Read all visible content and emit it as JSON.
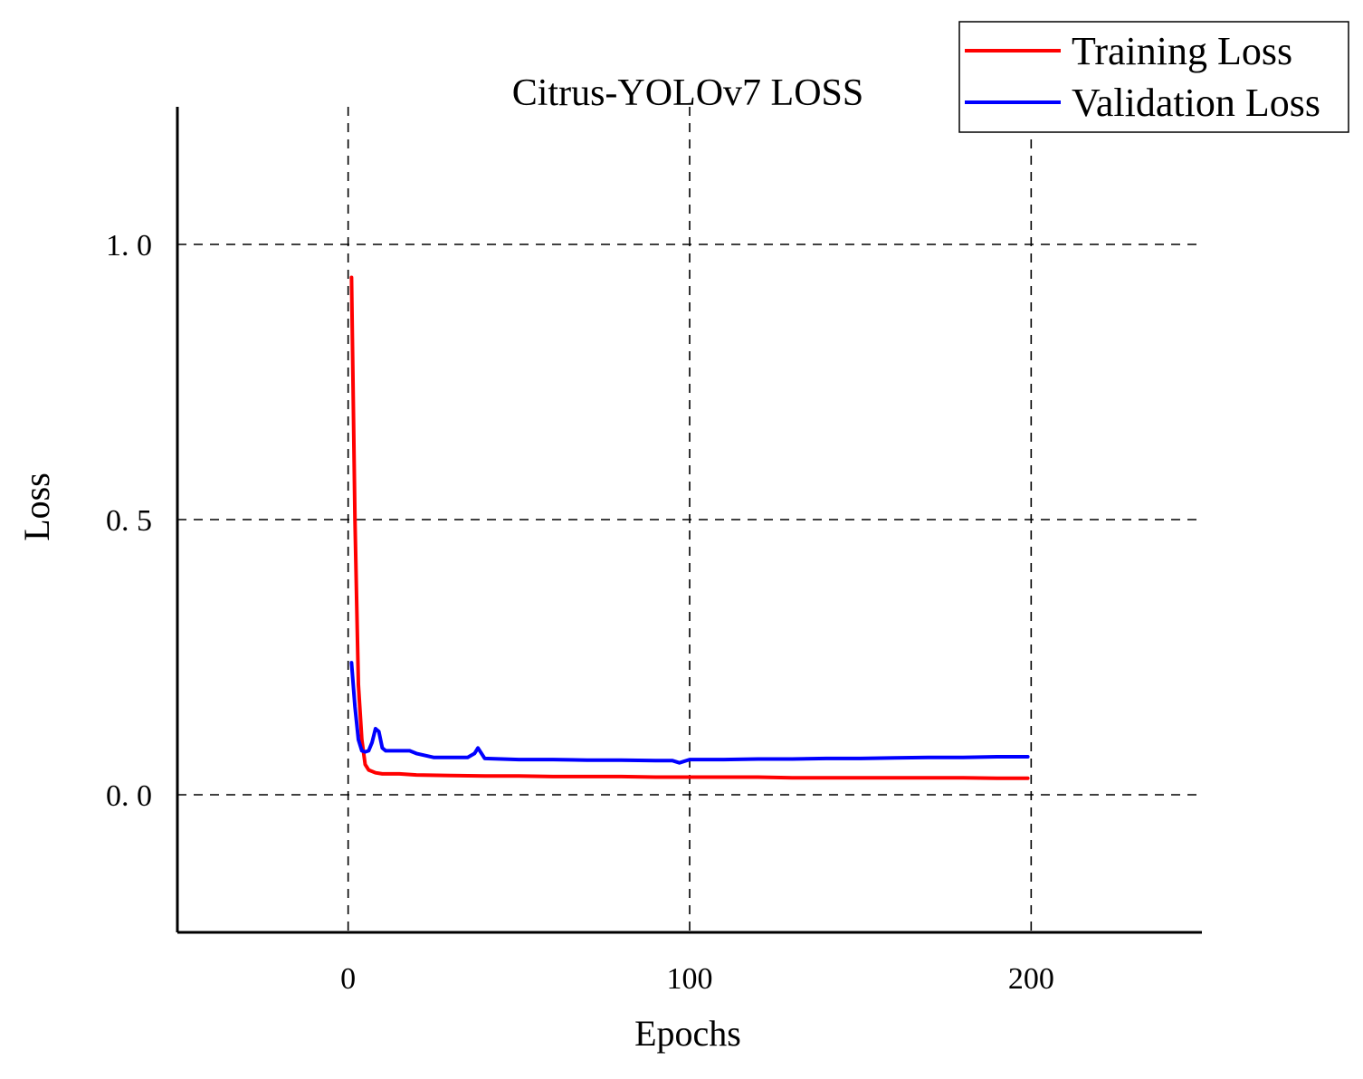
{
  "chart_data": {
    "type": "line",
    "title": "Citrus-YOLOv7 LOSS",
    "xlabel": "Epochs",
    "ylabel": "Loss",
    "xlim": [
      -50,
      250
    ],
    "ylim": [
      -0.25,
      1.25
    ],
    "x_ticks": [
      {
        "value": 0,
        "label": "0"
      },
      {
        "value": 100,
        "label": "100"
      },
      {
        "value": 200,
        "label": "200"
      }
    ],
    "y_ticks": [
      {
        "value": 1.0,
        "label": "1. 0"
      },
      {
        "value": 0.5,
        "label": "0. 5"
      },
      {
        "value": 0.0,
        "label": "0. 0"
      }
    ],
    "grid": "dashed, on tick positions",
    "legend_position": "top-right",
    "series": [
      {
        "name": "Training Loss",
        "color": "#ff0000",
        "x": [
          1,
          2,
          3,
          4,
          5,
          6,
          8,
          10,
          12,
          15,
          20,
          30,
          40,
          50,
          60,
          70,
          80,
          90,
          100,
          110,
          120,
          130,
          140,
          150,
          160,
          170,
          180,
          190,
          199
        ],
        "y": [
          0.94,
          0.5,
          0.2,
          0.1,
          0.055,
          0.045,
          0.04,
          0.038,
          0.038,
          0.038,
          0.036,
          0.035,
          0.034,
          0.034,
          0.033,
          0.033,
          0.033,
          0.032,
          0.032,
          0.032,
          0.032,
          0.031,
          0.031,
          0.031,
          0.031,
          0.031,
          0.031,
          0.03,
          0.03
        ]
      },
      {
        "name": "Validation Loss",
        "color": "#0000ff",
        "x": [
          1,
          2,
          3,
          4,
          5,
          6,
          7,
          8,
          9,
          10,
          11,
          12,
          14,
          16,
          18,
          20,
          25,
          30,
          35,
          37,
          38,
          40,
          50,
          60,
          70,
          80,
          90,
          95,
          97,
          100,
          110,
          120,
          130,
          140,
          150,
          160,
          170,
          180,
          190,
          199
        ],
        "y": [
          0.24,
          0.16,
          0.1,
          0.08,
          0.078,
          0.08,
          0.095,
          0.12,
          0.115,
          0.085,
          0.08,
          0.08,
          0.08,
          0.08,
          0.08,
          0.075,
          0.068,
          0.068,
          0.068,
          0.075,
          0.085,
          0.066,
          0.064,
          0.064,
          0.063,
          0.063,
          0.062,
          0.062,
          0.058,
          0.064,
          0.064,
          0.065,
          0.065,
          0.066,
          0.066,
          0.067,
          0.068,
          0.068,
          0.069,
          0.069
        ]
      }
    ]
  }
}
